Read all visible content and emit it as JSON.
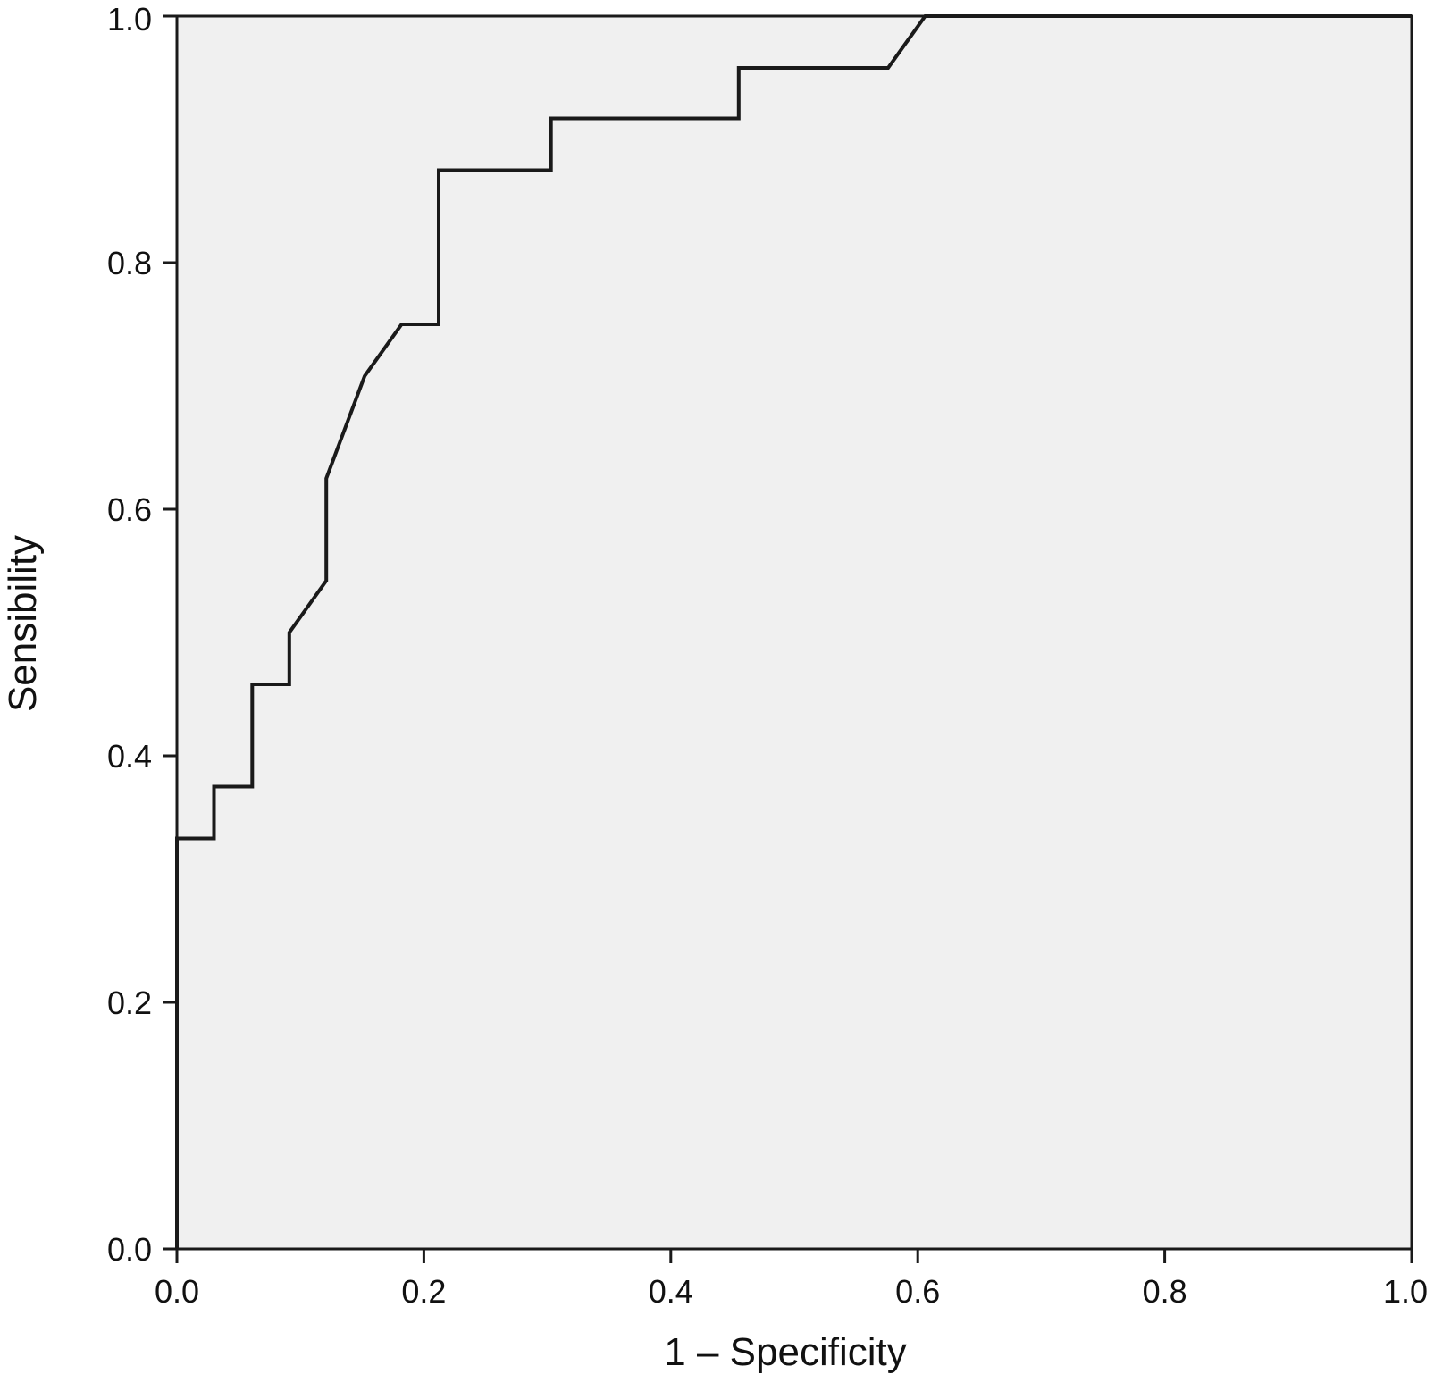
{
  "chart_data": {
    "type": "line",
    "title": "",
    "xlabel": "1 – Specificity",
    "ylabel": "Sensibility",
    "xlim": [
      0,
      1
    ],
    "ylim": [
      0,
      1
    ],
    "grid": false,
    "x_ticks": [
      "0.0",
      "0.2",
      "0.4",
      "0.6",
      "0.8",
      "1.0"
    ],
    "y_ticks": [
      "0.0",
      "0.2",
      "0.4",
      "0.6",
      "0.8",
      "1.0"
    ],
    "series": [
      {
        "x": [
          0,
          0,
          0.03,
          0.03,
          0.061,
          0.061,
          0.091,
          0.091,
          0.121,
          0.121,
          0.152,
          0.182,
          0.212,
          0.212,
          0.303,
          0.303,
          0.455,
          0.455,
          0.576,
          0.606,
          1.0
        ],
        "y": [
          0,
          0.333,
          0.333,
          0.375,
          0.375,
          0.458,
          0.458,
          0.5,
          0.542,
          0.625,
          0.708,
          0.75,
          0.75,
          0.875,
          0.875,
          0.917,
          0.917,
          0.958,
          0.958,
          1.0,
          1.0
        ]
      }
    ],
    "colors": {
      "plot_background": "#f0f0f0",
      "line": "#1a1a1a",
      "axis": "#1a1a1a"
    }
  }
}
